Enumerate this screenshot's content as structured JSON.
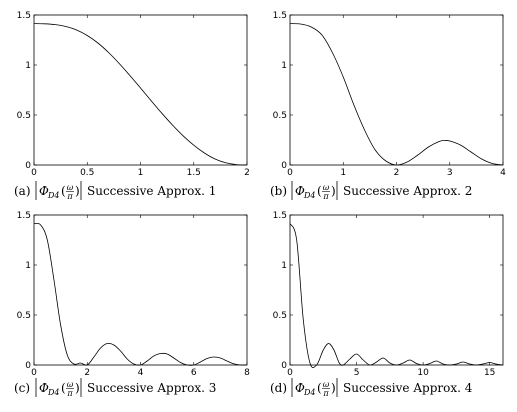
{
  "chart_data": [
    {
      "type": "line",
      "caption_label": "(a)",
      "caption_text": "Successive Approx. 1",
      "xlim": [
        0,
        2
      ],
      "ylim": [
        0,
        1.5
      ],
      "xticks": [
        "0",
        "0.5",
        "1",
        "1.5",
        "2"
      ],
      "yticks": [
        "0",
        "0.5",
        "1",
        "1.5"
      ],
      "xtick_values": [
        0,
        0.5,
        1,
        1.5,
        2
      ],
      "ytick_values": [
        0,
        0.5,
        1,
        1.5
      ],
      "series": [
        {
          "x": [
            0,
            0.1,
            0.2,
            0.3,
            0.4,
            0.5,
            0.6,
            0.7,
            0.8,
            0.9,
            1.0,
            1.1,
            1.2,
            1.3,
            1.4,
            1.5,
            1.6,
            1.7,
            1.8,
            1.9,
            2.0
          ],
          "y": [
            1.414,
            1.412,
            1.404,
            1.385,
            1.35,
            1.295,
            1.22,
            1.125,
            1.015,
            0.895,
            0.77,
            0.643,
            0.518,
            0.4,
            0.292,
            0.198,
            0.12,
            0.06,
            0.022,
            0.004,
            0.0
          ]
        }
      ]
    },
    {
      "type": "line",
      "caption_label": "(b)",
      "caption_text": "Successive Approx. 2",
      "xlim": [
        0,
        4
      ],
      "ylim": [
        0,
        1.5
      ],
      "xticks": [
        "0",
        "1",
        "2",
        "3",
        "4"
      ],
      "yticks": [
        "0",
        "0.5",
        "1",
        "1.5"
      ],
      "xtick_values": [
        0,
        1,
        2,
        3,
        4
      ],
      "ytick_values": [
        0,
        0.5,
        1,
        1.5
      ],
      "series": [
        {
          "x": [
            0,
            0.2,
            0.4,
            0.6,
            0.8,
            1.0,
            1.2,
            1.4,
            1.6,
            1.8,
            2.0,
            2.2,
            2.4,
            2.6,
            2.8,
            2.9,
            3.0,
            3.2,
            3.4,
            3.6,
            3.8,
            4.0
          ],
          "y": [
            1.414,
            1.41,
            1.38,
            1.3,
            1.12,
            0.88,
            0.6,
            0.35,
            0.15,
            0.04,
            0.0,
            0.03,
            0.1,
            0.18,
            0.235,
            0.245,
            0.24,
            0.2,
            0.13,
            0.06,
            0.015,
            0.0
          ]
        }
      ]
    },
    {
      "type": "line",
      "caption_label": "(c)",
      "caption_text": "Successive Approx. 3",
      "xlim": [
        0,
        8
      ],
      "ylim": [
        0,
        1.5
      ],
      "xticks": [
        "0",
        "2",
        "4",
        "6",
        "8"
      ],
      "yticks": [
        "0",
        "0.5",
        "1",
        "1.5"
      ],
      "xtick_values": [
        0,
        2,
        4,
        6,
        8
      ],
      "ytick_values": [
        0,
        0.5,
        1,
        1.5
      ],
      "series": [
        {
          "x": [
            0,
            0.25,
            0.5,
            0.75,
            1.0,
            1.25,
            1.5,
            1.75,
            2.0,
            2.25,
            2.5,
            2.75,
            3.0,
            3.25,
            3.5,
            3.75,
            4.0,
            4.25,
            4.5,
            4.75,
            5.0,
            5.25,
            5.5,
            5.75,
            6.0,
            6.25,
            6.5,
            6.75,
            7.0,
            7.25,
            7.5,
            7.75,
            8.0
          ],
          "y": [
            1.414,
            1.4,
            1.25,
            0.85,
            0.4,
            0.1,
            0.01,
            0.02,
            0.0,
            0.08,
            0.17,
            0.215,
            0.2,
            0.14,
            0.06,
            0.01,
            0.0,
            0.04,
            0.09,
            0.115,
            0.11,
            0.07,
            0.025,
            0.0,
            0.0,
            0.03,
            0.065,
            0.08,
            0.07,
            0.04,
            0.012,
            0.0,
            0.0
          ]
        }
      ]
    },
    {
      "type": "line",
      "caption_label": "(d)",
      "caption_text": "Successive Approx. 4",
      "xlim": [
        0,
        16
      ],
      "ylim": [
        0,
        1.5
      ],
      "xticks": [
        "0",
        "5",
        "10",
        "15"
      ],
      "yticks": [
        "0",
        "0.5",
        "1",
        "1.5"
      ],
      "xtick_values": [
        0,
        5,
        10,
        15
      ],
      "ytick_values": [
        0,
        0.5,
        1,
        1.5
      ],
      "series": [
        {
          "x": [
            0,
            0.5,
            1.0,
            1.5,
            2.0,
            2.5,
            2.9,
            3.3,
            3.7,
            4.0,
            4.5,
            5.0,
            5.5,
            6.0,
            6.5,
            7.0,
            7.5,
            8.0,
            8.5,
            9.0,
            9.5,
            10.0,
            10.5,
            11.0,
            11.5,
            12.0,
            12.5,
            13.0,
            13.5,
            14.0,
            14.5,
            15.0,
            15.5,
            16.0
          ],
          "y": [
            1.414,
            1.25,
            0.45,
            0.02,
            0.0,
            0.15,
            0.215,
            0.15,
            0.02,
            0.0,
            0.06,
            0.11,
            0.05,
            0.0,
            0.03,
            0.07,
            0.02,
            0.0,
            0.02,
            0.05,
            0.015,
            0.0,
            0.015,
            0.04,
            0.01,
            0.0,
            0.01,
            0.03,
            0.01,
            0.0,
            0.01,
            0.025,
            0.008,
            0.0
          ]
        }
      ]
    }
  ]
}
